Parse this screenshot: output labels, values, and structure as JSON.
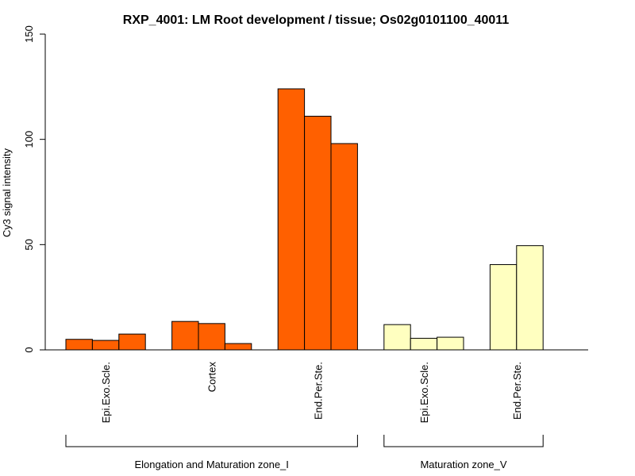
{
  "chart_data": {
    "type": "bar",
    "title": "RXP_4001: LM Root development / tissue; Os02g0101100_40011",
    "xlabel": "",
    "ylabel": "Cy3 signal intensity",
    "ylim": [
      0,
      150
    ],
    "yticks": [
      0,
      50,
      100,
      150
    ],
    "categories": [
      {
        "label": "Epi.Exo.Scle.",
        "group": 0,
        "values": [
          5,
          4.5,
          7.5
        ]
      },
      {
        "label": "Cortex",
        "group": 0,
        "values": [
          13.5,
          12.5,
          3
        ]
      },
      {
        "label": "End.Per.Ste.",
        "group": 0,
        "values": [
          124,
          111,
          98
        ]
      },
      {
        "label": "Epi.Exo.Scle.",
        "group": 1,
        "values": [
          12,
          5.5,
          6
        ]
      },
      {
        "label": "End.Per.Ste.",
        "group": 1,
        "values": [
          40.5,
          49.5
        ]
      }
    ],
    "groups": [
      {
        "label": "Elongation and Maturation zone_I",
        "color": "#ff6000"
      },
      {
        "label": "Maturation zone_V",
        "color": "#ffffc0"
      }
    ]
  }
}
